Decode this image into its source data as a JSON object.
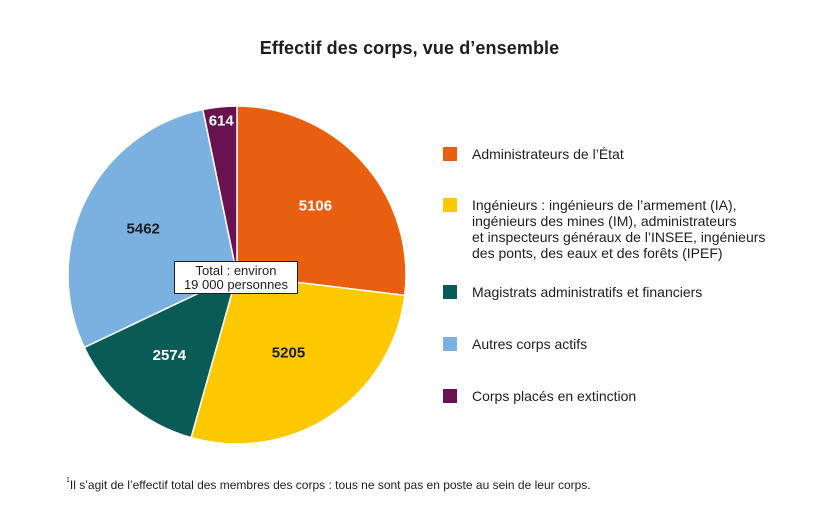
{
  "chart_data": {
    "type": "pie",
    "title": "Effectif des corps, vue d’ensemble",
    "center_annotation": [
      "Total : environ",
      "19 000 personnes"
    ],
    "slices": [
      {
        "label": "Administrateurs de l’État",
        "value": 5106,
        "color": "#e8600f"
      },
      {
        "label": "Ingénieurs : ingénieurs de l’armement (IA), ingénieurs des mines (IM), administrateurs et inspecteurs généraux de l’INSEE, ingénieurs des ponts, des eaux et des forêts (IPEF)",
        "value": 5205,
        "color": "#fcc800"
      },
      {
        "label": "Magistrats administratifs et financiers",
        "value": 2574,
        "color": "#0a5a55"
      },
      {
        "label": "Autres corps actifs",
        "value": 5462,
        "color": "#7ab1e0"
      },
      {
        "label": "Corps placés en extinction",
        "value": 614,
        "color": "#6a1150"
      }
    ],
    "legend_placement": "right",
    "footnote_marker": "1",
    "footnote": "Il s’agit de l’effectif total des membres des corps : tous ne sont pas en poste au sein de leur corps."
  },
  "legend": {
    "lines": [
      [
        "Administrateurs de l’État"
      ],
      [
        "Ingénieurs : ingénieurs de l’armement (IA),",
        "ingénieurs des mines (IM), administrateurs",
        "et inspecteurs généraux de l’INSEE, ingénieurs",
        "des ponts, des eaux et des forêts (IPEF)"
      ],
      [
        "Magistrats administratifs et financiers"
      ],
      [
        "Autres corps actifs"
      ],
      [
        "Corps placés en extinction"
      ]
    ]
  }
}
